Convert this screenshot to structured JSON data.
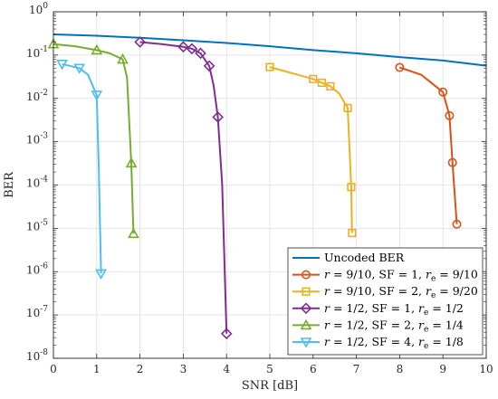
{
  "chart_data": {
    "type": "line",
    "xlabel": "SNR [dB]",
    "ylabel": "BER",
    "xlim": [
      0,
      10
    ],
    "ylim": [
      1e-08,
      1
    ],
    "yscale": "log",
    "grid": true,
    "legend_position": "bottom-right",
    "x_ticks": [
      "0",
      "1",
      "2",
      "3",
      "4",
      "5",
      "6",
      "7",
      "8",
      "9",
      "10"
    ],
    "y_ticks": [
      {
        "base": "10",
        "exp": "0"
      },
      {
        "base": "10",
        "exp": "-1"
      },
      {
        "base": "10",
        "exp": "-2"
      },
      {
        "base": "10",
        "exp": "-3"
      },
      {
        "base": "10",
        "exp": "-4"
      },
      {
        "base": "10",
        "exp": "-5"
      },
      {
        "base": "10",
        "exp": "-6"
      },
      {
        "base": "10",
        "exp": "-7"
      },
      {
        "base": "10",
        "exp": "-8"
      }
    ],
    "series": [
      {
        "name": "Uncoded BER",
        "color": "#0072BD",
        "marker": "none",
        "x": [
          0,
          1,
          2,
          3,
          4,
          5,
          6,
          7,
          8,
          9,
          10
        ],
        "y": [
          0.3,
          0.28,
          0.25,
          0.22,
          0.19,
          0.16,
          0.13,
          0.11,
          0.09,
          0.075,
          0.057
        ],
        "curve": []
      },
      {
        "name": "r = 9/10, SF = 1, r_e = 9/10",
        "color": "#D95319",
        "marker": "circle",
        "x": [
          8.0,
          9.0,
          9.15,
          9.22,
          9.32
        ],
        "y": [
          0.052,
          0.014,
          0.004,
          0.00033,
          1.25e-05
        ],
        "curve": [
          [
            8.0,
            0.052
          ],
          [
            8.5,
            0.035
          ],
          [
            9.0,
            0.014
          ],
          [
            9.15,
            0.004
          ],
          [
            9.22,
            0.00033
          ],
          [
            9.32,
            1.25e-05
          ]
        ]
      },
      {
        "name": "r = 9/10, SF = 2, r_e = 9/20",
        "color": "#EDB120",
        "marker": "square",
        "x": [
          5.0,
          6.0,
          6.2,
          6.4,
          6.8,
          6.88,
          6.9
        ],
        "y": [
          0.053,
          0.028,
          0.023,
          0.019,
          0.006,
          9e-05,
          7.8e-06
        ],
        "curve": [
          [
            5.0,
            0.053
          ],
          [
            6.0,
            0.028
          ],
          [
            6.2,
            0.023
          ],
          [
            6.4,
            0.019
          ],
          [
            6.6,
            0.013
          ],
          [
            6.8,
            0.006
          ],
          [
            6.88,
            9e-05
          ],
          [
            6.9,
            7.8e-06
          ]
        ]
      },
      {
        "name": "r = 1/2, SF = 1, r_e = 1/2",
        "color": "#7E2F8E",
        "marker": "diamond",
        "x": [
          2.0,
          3.0,
          3.2,
          3.4,
          3.6,
          3.8,
          4.0
        ],
        "y": [
          0.2,
          0.155,
          0.14,
          0.11,
          0.056,
          0.0037,
          3.7e-08
        ],
        "curve": [
          [
            2.0,
            0.2
          ],
          [
            2.5,
            0.18
          ],
          [
            3.0,
            0.155
          ],
          [
            3.2,
            0.14
          ],
          [
            3.4,
            0.11
          ],
          [
            3.6,
            0.056
          ],
          [
            3.7,
            0.02
          ],
          [
            3.8,
            0.0037
          ],
          [
            3.9,
            0.0001
          ],
          [
            4.0,
            3.7e-08
          ]
        ]
      },
      {
        "name": "r = 1/2, SF = 2, r_e = 1/4",
        "color": "#77AC30",
        "marker": "triangle-up",
        "x": [
          0.0,
          1.0,
          1.6,
          1.8,
          1.85
        ],
        "y": [
          0.18,
          0.13,
          0.08,
          0.00032,
          7.5e-06
        ],
        "curve": [
          [
            0.0,
            0.18
          ],
          [
            0.5,
            0.16
          ],
          [
            1.0,
            0.13
          ],
          [
            1.3,
            0.11
          ],
          [
            1.6,
            0.08
          ],
          [
            1.7,
            0.03
          ],
          [
            1.8,
            0.00032
          ],
          [
            1.85,
            7.5e-06
          ]
        ]
      },
      {
        "name": "r = 1/2, SF = 4, r_e = 1/8",
        "color": "#4DBEEE",
        "marker": "triangle-down",
        "x": [
          0.2,
          0.6,
          1.0,
          1.1
        ],
        "y": [
          0.062,
          0.05,
          0.012,
          9e-07
        ],
        "curve": [
          [
            0.2,
            0.062
          ],
          [
            0.6,
            0.05
          ],
          [
            0.8,
            0.035
          ],
          [
            1.0,
            0.012
          ],
          [
            1.05,
            0.0002
          ],
          [
            1.1,
            9e-07
          ]
        ]
      }
    ],
    "legend": [
      {
        "html": "Uncoded BER"
      },
      {
        "r": "9/10",
        "sf": "1",
        "re": "9/10"
      },
      {
        "r": "9/10",
        "sf": "2",
        "re": "9/20"
      },
      {
        "r": "1/2",
        "sf": "1",
        "re": "1/2"
      },
      {
        "r": "1/2",
        "sf": "2",
        "re": "1/4"
      },
      {
        "r": "1/2",
        "sf": "4",
        "re": "1/8"
      }
    ]
  }
}
